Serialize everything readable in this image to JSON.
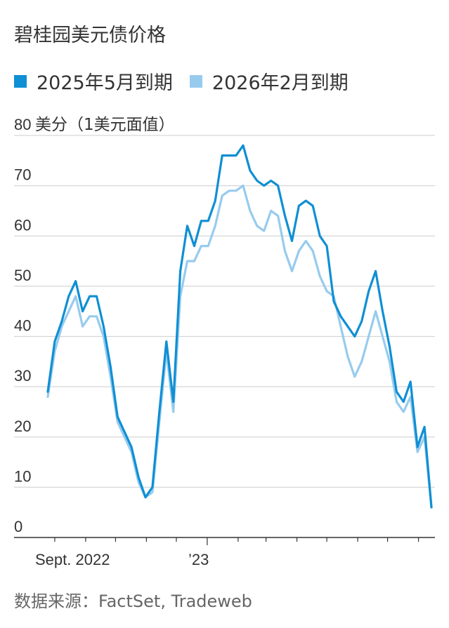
{
  "title": "碧桂园美元债价格",
  "source": "数据来源：FactSet, Tradeweb",
  "chart_data": {
    "type": "line",
    "title": "碧桂园美元债价格",
    "ylabel_unit": "美分（1美元面值）",
    "ylim": [
      0,
      80
    ],
    "yticks": [
      0,
      10,
      20,
      30,
      40,
      50,
      60,
      70,
      80
    ],
    "ytick_labels": [
      "0",
      "10",
      "20",
      "30",
      "40",
      "50",
      "60",
      "70",
      "80"
    ],
    "top_tick_label": "80",
    "xlabels": [
      "Sept. 2022",
      "’23"
    ],
    "grid": true,
    "legend_position": "top-left",
    "x": [
      "2022-07-25",
      "2022-08-01",
      "2022-08-08",
      "2022-08-15",
      "2022-08-22",
      "2022-08-29",
      "2022-09-05",
      "2022-09-12",
      "2022-09-19",
      "2022-09-26",
      "2022-10-03",
      "2022-10-10",
      "2022-10-17",
      "2022-10-24",
      "2022-10-31",
      "2022-11-07",
      "2022-11-14",
      "2022-11-21",
      "2022-11-28",
      "2022-12-05",
      "2022-12-12",
      "2022-12-19",
      "2022-12-26",
      "2023-01-02",
      "2023-01-09",
      "2023-01-16",
      "2023-01-23",
      "2023-01-30",
      "2023-02-06",
      "2023-02-13",
      "2023-02-20",
      "2023-02-27",
      "2023-03-06",
      "2023-03-13",
      "2023-03-20",
      "2023-03-27",
      "2023-04-03",
      "2023-04-10",
      "2023-04-17",
      "2023-04-24",
      "2023-05-01",
      "2023-05-08",
      "2023-05-15",
      "2023-05-22",
      "2023-05-29",
      "2023-06-05",
      "2023-06-12",
      "2023-06-19",
      "2023-06-26",
      "2023-07-03",
      "2023-07-10",
      "2023-07-17",
      "2023-07-24",
      "2023-07-31",
      "2023-08-07",
      "2023-08-14"
    ],
    "series": [
      {
        "name": "2025年5月到期",
        "color": "#0f8fd4",
        "values": [
          29,
          39,
          43,
          48,
          51,
          45,
          48,
          48,
          42,
          34,
          24,
          21,
          18,
          12,
          8,
          10,
          25,
          39,
          27,
          53,
          62,
          58,
          63,
          63,
          67,
          76,
          76,
          76,
          78,
          73,
          71,
          70,
          71,
          70,
          64,
          59,
          66,
          67,
          66,
          60,
          58,
          47,
          44,
          42,
          40,
          43,
          49,
          53,
          45,
          38,
          29,
          27,
          31,
          18,
          22,
          6
        ]
      },
      {
        "name": "2026年2月到期",
        "color": "#97cbee",
        "values": [
          28,
          37,
          42,
          45,
          48,
          42,
          44,
          44,
          40,
          32,
          23,
          20,
          17,
          11,
          8,
          9,
          23,
          37,
          25,
          48,
          55,
          55,
          58,
          58,
          62,
          68,
          69,
          69,
          70,
          65,
          62,
          61,
          65,
          64,
          57,
          53,
          57,
          59,
          57,
          52,
          49,
          48,
          42,
          36,
          32,
          35,
          40,
          45,
          40,
          35,
          27,
          25,
          28,
          17,
          20,
          6
        ]
      }
    ]
  }
}
